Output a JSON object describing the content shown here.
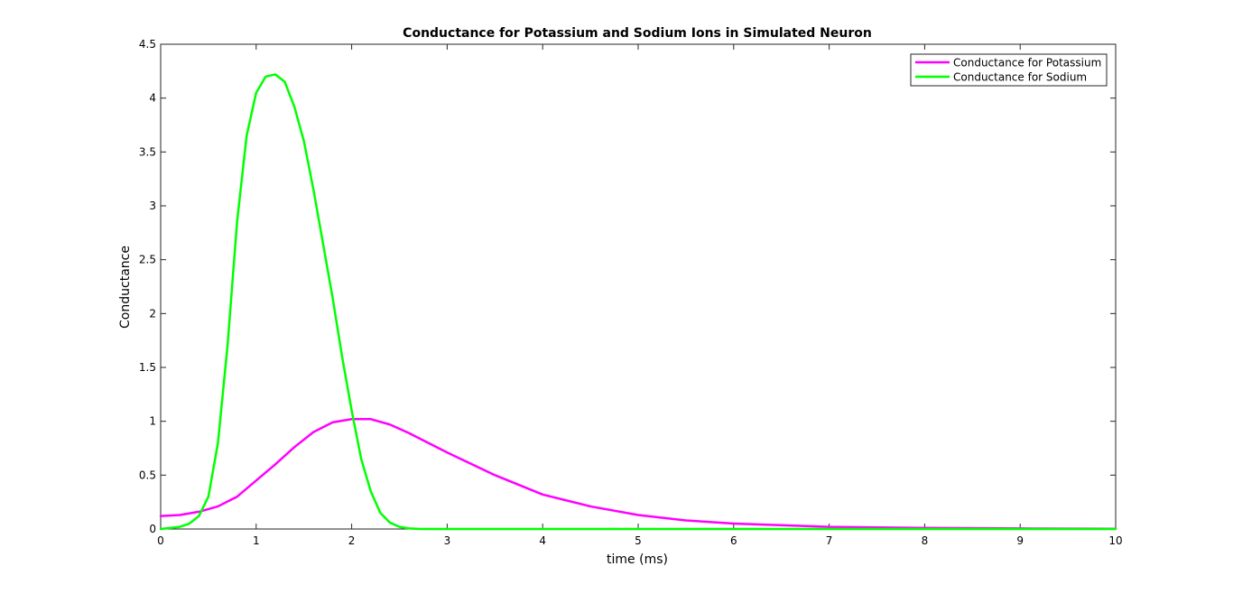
{
  "chart_data": {
    "type": "line",
    "title": "Conductance for Potassium and Sodium Ions in Simulated Neuron",
    "xlabel": "time (ms)",
    "ylabel": "Conductance",
    "xlim": [
      0,
      10
    ],
    "ylim": [
      0,
      4.5
    ],
    "xticks": [
      0,
      1,
      2,
      3,
      4,
      5,
      6,
      7,
      8,
      9,
      10
    ],
    "xtick_labels": [
      "0",
      "1",
      "2",
      "3",
      "4",
      "5",
      "6",
      "7",
      "8",
      "9",
      "10"
    ],
    "yticks": [
      0,
      0.5,
      1,
      1.5,
      2,
      2.5,
      3,
      3.5,
      4,
      4.5
    ],
    "ytick_labels": [
      "0",
      "0.5",
      "1",
      "1.5",
      "2",
      "2.5",
      "3",
      "3.5",
      "4",
      "4.5"
    ],
    "grid": false,
    "legend_position": "top-right",
    "series": [
      {
        "name": "Conductance for Potassium",
        "color": "#ff00ff",
        "x": [
          0,
          0.2,
          0.4,
          0.6,
          0.8,
          1.0,
          1.2,
          1.4,
          1.6,
          1.8,
          2.0,
          2.2,
          2.4,
          2.6,
          2.8,
          3.0,
          3.5,
          4.0,
          4.5,
          5.0,
          5.5,
          6.0,
          7.0,
          8.0,
          9.0,
          10.0
        ],
        "y": [
          0.12,
          0.13,
          0.16,
          0.21,
          0.3,
          0.45,
          0.6,
          0.76,
          0.9,
          0.99,
          1.02,
          1.02,
          0.97,
          0.89,
          0.8,
          0.71,
          0.5,
          0.32,
          0.21,
          0.13,
          0.08,
          0.05,
          0.02,
          0.01,
          0.005,
          0.002
        ]
      },
      {
        "name": "Conductance for Sodium",
        "color": "#00ff00",
        "x": [
          0,
          0.2,
          0.3,
          0.4,
          0.5,
          0.6,
          0.7,
          0.8,
          0.9,
          1.0,
          1.1,
          1.2,
          1.3,
          1.4,
          1.5,
          1.6,
          1.7,
          1.8,
          1.9,
          2.0,
          2.1,
          2.2,
          2.3,
          2.4,
          2.5,
          2.6,
          2.7,
          2.8,
          3.0,
          4.0,
          6.0,
          8.0,
          10.0
        ],
        "y": [
          0.0,
          0.02,
          0.05,
          0.12,
          0.3,
          0.8,
          1.7,
          2.85,
          3.65,
          4.05,
          4.2,
          4.22,
          4.15,
          3.92,
          3.6,
          3.15,
          2.65,
          2.15,
          1.6,
          1.1,
          0.65,
          0.35,
          0.15,
          0.06,
          0.02,
          0.005,
          0.001,
          0.0,
          0.0,
          0.0,
          0.0,
          0.0,
          0.0
        ]
      }
    ]
  }
}
